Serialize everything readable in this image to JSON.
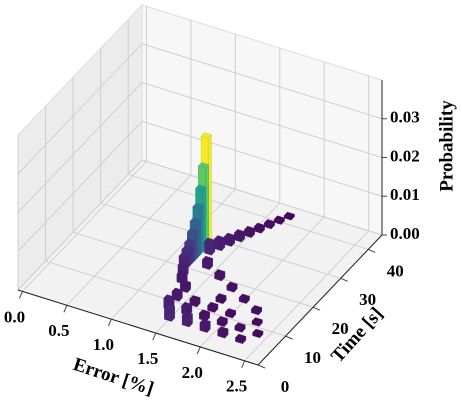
{
  "chart_data": {
    "type": "bar3d",
    "xlabel": "Error [%]",
    "ylabel": "Time [s]",
    "zlabel": "Probability",
    "xlim": [
      -0.05,
      2.65
    ],
    "ylim": [
      0,
      45
    ],
    "zlim": [
      0,
      0.04
    ],
    "xticks": [
      {
        "value": 0,
        "label": "0.0"
      },
      0.5,
      {
        "value": 1,
        "label": "1.0"
      },
      1.5,
      {
        "value": 2,
        "label": "2.0"
      },
      2.5
    ],
    "yticks": [
      0,
      10,
      20,
      30,
      40
    ],
    "zticks": [
      {
        "value": 0,
        "label": "0.00"
      },
      {
        "value": 0.01,
        "label": "0.01"
      },
      {
        "value": 0.02,
        "label": "0.02"
      },
      {
        "value": 0.03,
        "label": "0.03"
      }
    ],
    "grid": true,
    "colormap": "viridis",
    "bars": {
      "error": [
        1.7,
        1.65,
        1.6,
        1.55,
        1.5,
        1.45,
        1.4,
        1.2,
        1.35,
        1.2,
        1.2,
        1.3,
        1.2,
        1.2,
        1.2,
        1.2,
        1.4,
        1.2,
        1.2,
        1.6,
        1.25,
        1.8,
        1.3,
        2.0,
        1.4,
        1.8,
        2.2,
        1.4,
        1.6,
        1.8,
        2.0,
        2.3,
        1.4,
        1.6,
        1.8,
        2.0,
        2.2,
        2.4,
        1.5,
        1.7,
        1.9,
        2.1,
        2.3
      ],
      "time": [
        42,
        40,
        38,
        36,
        34,
        32,
        30,
        28,
        28,
        27,
        26,
        26,
        25,
        24,
        23,
        22,
        22,
        21,
        20,
        20,
        18,
        18,
        16,
        16,
        14,
        14,
        14,
        11,
        11,
        11,
        11,
        11,
        8,
        8,
        8,
        8,
        8,
        8,
        5,
        5,
        5,
        5,
        5
      ],
      "probability": [
        0.0006,
        0.0008,
        0.001,
        0.0012,
        0.0015,
        0.0018,
        0.002,
        0.028,
        0.0025,
        0.021,
        0.016,
        0.003,
        0.012,
        0.009,
        0.007,
        0.005,
        0.002,
        0.004,
        0.003,
        0.0015,
        0.0025,
        0.0012,
        0.002,
        0.001,
        0.0018,
        0.0012,
        0.001,
        0.002,
        0.0015,
        0.0012,
        0.001,
        0.0008,
        0.0025,
        0.002,
        0.0015,
        0.0012,
        0.001,
        0.0008,
        0.003,
        0.0025,
        0.002,
        0.0015,
        0.001
      ]
    }
  }
}
